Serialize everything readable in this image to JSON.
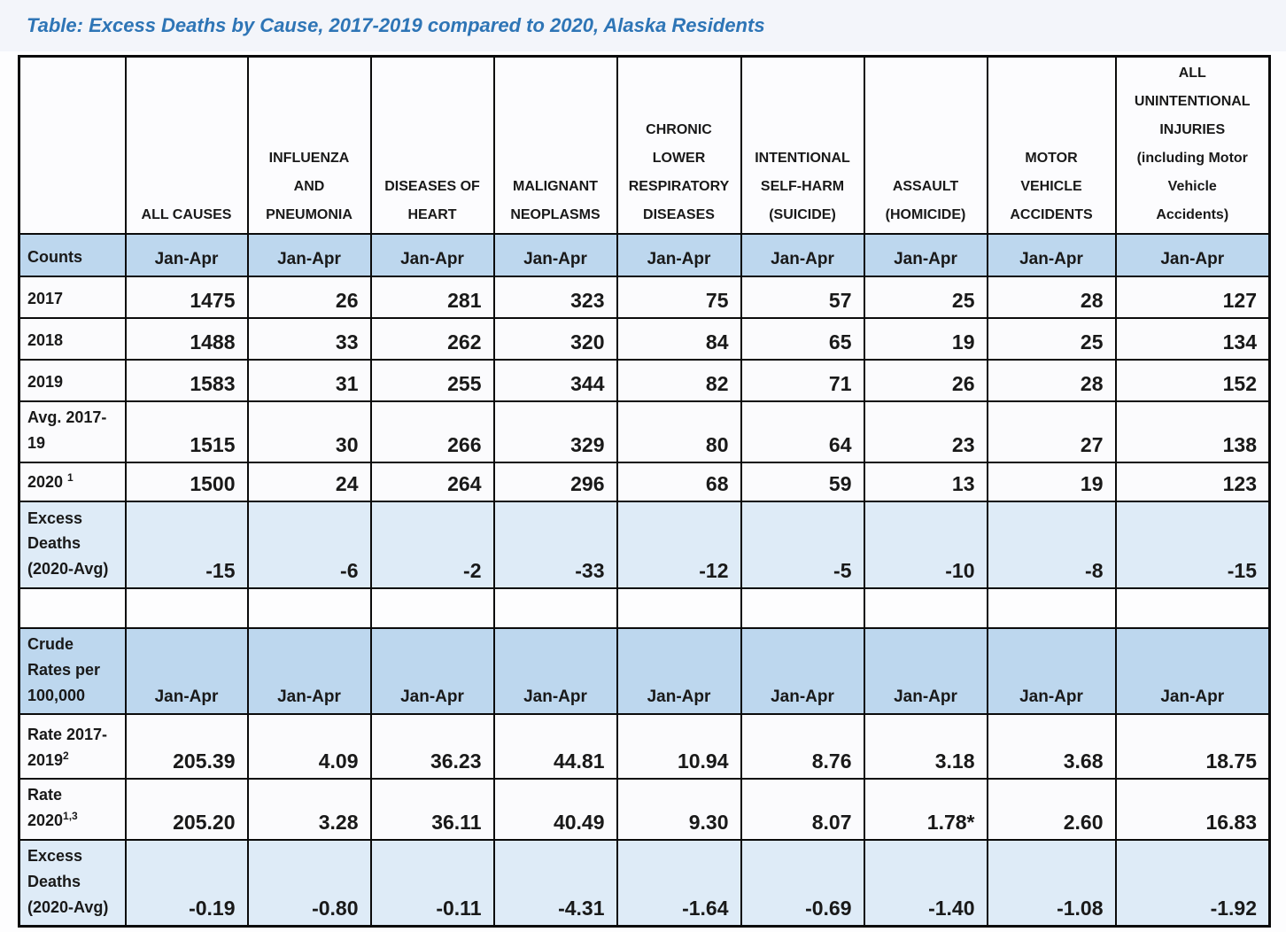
{
  "title": "Table: Excess Deaths by Cause, 2017-2019 compared to 2020, Alaska Residents",
  "colors": {
    "band_blue": "#BDD7EE",
    "excess_blue": "#DEEBF7",
    "title_blue": "#2E75B6"
  },
  "columns": [
    "ALL CAUSES",
    "INFLUENZA\nAND\nPNEUMONIA",
    "DISEASES OF\nHEART",
    "MALIGNANT\nNEOPLASMS",
    "CHRONIC\nLOWER\nRESPIRATORY\nDISEASES",
    "INTENTIONAL\nSELF-HARM\n(SUICIDE)",
    "ASSAULT\n(HOMICIDE)",
    "MOTOR\nVEHICLE\nACCIDENTS",
    "ALL\nUNINTENTIONAL\nINJURIES\n(including Motor\nVehicle\nAccidents)"
  ],
  "sections": [
    {
      "band": {
        "label": "Counts",
        "cell_label": "Jan-Apr"
      },
      "rows": [
        {
          "label": "2017",
          "values": [
            "1475",
            "26",
            "281",
            "323",
            "75",
            "57",
            "25",
            "28",
            "127"
          ]
        },
        {
          "label": "2018",
          "values": [
            "1488",
            "33",
            "262",
            "320",
            "84",
            "65",
            "19",
            "25",
            "134"
          ]
        },
        {
          "label": "2019",
          "values": [
            "1583",
            "31",
            "255",
            "344",
            "82",
            "71",
            "26",
            "28",
            "152"
          ]
        },
        {
          "label": "Avg. 2017-\n19",
          "values": [
            "1515",
            "30",
            "266",
            "329",
            "80",
            "64",
            "23",
            "27",
            "138"
          ]
        },
        {
          "label": "2020 ",
          "sup": "1",
          "values": [
            "1500",
            "24",
            "264",
            "296",
            "68",
            "59",
            "13",
            "19",
            "123"
          ]
        },
        {
          "label": "Excess\nDeaths\n(2020-Avg)",
          "highlight": true,
          "values": [
            "-15",
            "-6",
            "-2",
            "-33",
            "-12",
            "-5",
            "-10",
            "-8",
            "-15"
          ]
        }
      ]
    },
    {
      "band": {
        "label": "Crude\nRates per\n100,000",
        "cell_label": "Jan-Apr"
      },
      "rows": [
        {
          "label": "Rate 2017-\n2019",
          "sup": "2",
          "values": [
            "205.39",
            "4.09",
            "36.23",
            "44.81",
            "10.94",
            "8.76",
            "3.18",
            "3.68",
            "18.75"
          ]
        },
        {
          "label": "Rate\n2020",
          "sup": "1,3",
          "values": [
            "205.20",
            "3.28",
            "36.11",
            "40.49",
            "9.30",
            "8.07",
            "1.78*",
            "2.60",
            "16.83"
          ]
        },
        {
          "label": "Excess\nDeaths\n(2020-Avg)",
          "highlight": true,
          "values": [
            "-0.19",
            "-0.80",
            "-0.11",
            "-4.31",
            "-1.64",
            "-0.69",
            "-1.40",
            "-1.08",
            "-1.92"
          ]
        }
      ]
    }
  ]
}
